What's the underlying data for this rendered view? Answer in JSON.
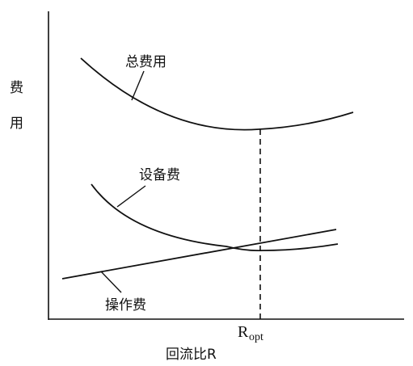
{
  "axes": {
    "y_label": [
      "费",
      "用"
    ],
    "x_label": "回流比R"
  },
  "curves": [
    {
      "label": "总费用"
    },
    {
      "label": "设备费"
    },
    {
      "label": "操作费"
    }
  ],
  "marker": {
    "symbol": "R",
    "subscript": "opt"
  }
}
